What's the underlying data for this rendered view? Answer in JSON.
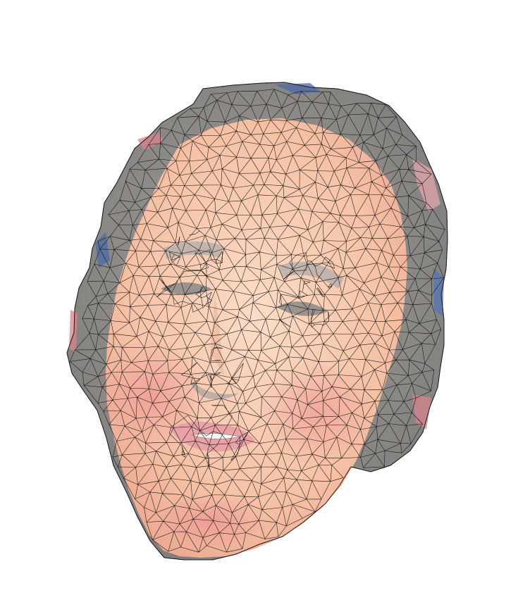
{
  "colors": {
    "background": "#ffffff",
    "hair": "#8c8a88",
    "hair_light": "#a9a6a3",
    "skin": "#f6c4a6",
    "skin_light": "#fbd9c3",
    "cheek": "#ee9e9a",
    "lips": "#e9a3a6",
    "teeth": "#f1f3f4",
    "eye_shadow": "#9d9a98",
    "brow": "#b8b2ae",
    "edge_red": "#d6848e",
    "edge_blue": "#4d6aa8",
    "wireframe": "#111111"
  },
  "icons": {
    "mesh": "triangulated-face-mesh"
  }
}
